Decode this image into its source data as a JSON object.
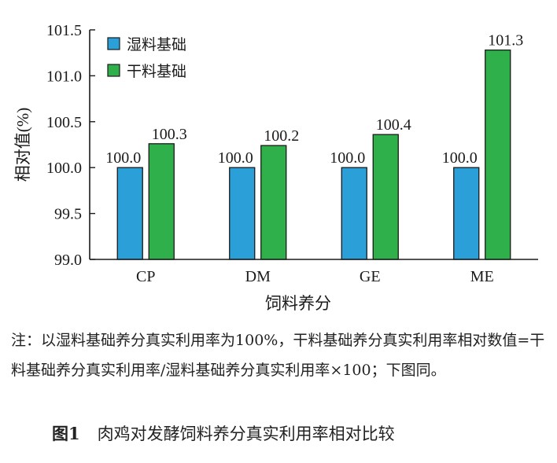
{
  "chart_data": {
    "type": "bar",
    "categories": [
      "CP",
      "DM",
      "GE",
      "ME"
    ],
    "series": [
      {
        "name": "湿料基础",
        "values": [
          100.0,
          100.0,
          100.0,
          100.0
        ],
        "labels": [
          "100.0",
          "100.0",
          "100.0",
          "100.0"
        ],
        "color": "#2a9fd8"
      },
      {
        "name": "干料基础",
        "values": [
          100.26,
          100.24,
          100.36,
          101.28
        ],
        "labels": [
          "100.3",
          "100.2",
          "100.4",
          "101.3"
        ],
        "color": "#2fb04a"
      }
    ],
    "xlabel": "饲料养分",
    "ylabel": "相对值(%)",
    "ylim": [
      99.0,
      101.5
    ],
    "yticks": [
      "99.0",
      "99.5",
      "100.0",
      "100.5",
      "101.0",
      "101.5"
    ],
    "legend_position": "top-left",
    "grid": false
  },
  "note": {
    "prefix": "注：",
    "text": "以湿料基础养分真实利用率为100%，干料基础养分真实利用率相对数值=干料基础养分真实利用率/湿料基础养分真实利用率×100；下图同。"
  },
  "caption": {
    "figure_no": "图1",
    "title": "肉鸡对发酵饲料养分真实利用率相对比较"
  }
}
